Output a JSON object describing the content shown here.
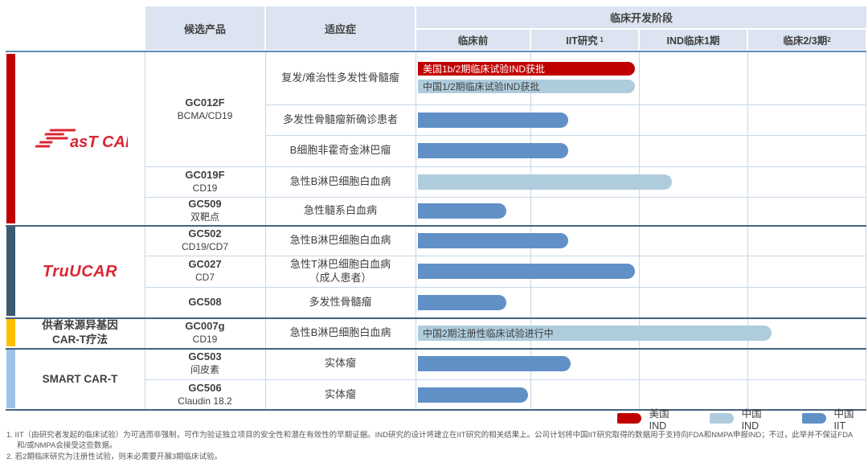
{
  "table": {
    "header": {
      "product": "候选产品",
      "indication": "适应症",
      "stage_group": "临床开发阶段",
      "stages": [
        {
          "label": "临床前",
          "sup": ""
        },
        {
          "label": "IIT研究",
          "sup": "1",
          "gap": true
        },
        {
          "label": "IND临床1期",
          "sup": ""
        },
        {
          "label": "临床2/3期",
          "sup": "2"
        }
      ]
    }
  },
  "colors": {
    "us_ind": "#C00000",
    "cn_ind": "#AFCCDC",
    "cn_iit": "#6190C7",
    "logo_red": "#D92632",
    "strip_fastcar": "#C00000",
    "strip_truucar": "#3D5A73",
    "strip_donor": "#FFC000",
    "strip_smart": "#9CC3E5"
  },
  "sections": [
    {
      "id": "fastcar",
      "label": "FasT CAR",
      "logo": "fastcar",
      "strip": "#C00000",
      "row_start": 0,
      "row_count": 5
    },
    {
      "id": "truucar",
      "label": "TruUCAR",
      "logo": "truucar",
      "strip": "#3D5A73",
      "row_start": 5,
      "row_count": 3
    },
    {
      "id": "donor-allogeneic",
      "label_lines": [
        "供者来源异基因",
        "CAR-T疗法"
      ],
      "strip": "#FFC000",
      "row_start": 8,
      "row_count": 1
    },
    {
      "id": "smart-cart",
      "label_lines": [
        "SMART CAR-T"
      ],
      "strip": "#9CC3E5",
      "row_start": 9,
      "row_count": 2
    }
  ],
  "chart_data": {
    "type": "gantt",
    "title": "临床开发阶段",
    "stages": [
      "临床前",
      "IIT研究",
      "IND临床1期",
      "临床2/3期"
    ],
    "legend_entries": [
      "美国 IND",
      "中国 IND",
      "中国 IIT"
    ],
    "rows": [
      {
        "product_lines": [
          "GC012F",
          "BCMA/CD19"
        ],
        "product_rowspan": 3,
        "indication_lines": [
          "复发/难治性多发性骨髓瘤"
        ],
        "bars": [
          {
            "type": "us_ind",
            "end_stage": 1.96,
            "label": "美国1b/2期临床试验IND获批"
          },
          {
            "type": "cn_ind",
            "end_stage": 1.96,
            "label": "中国1/2期临床试验IND获批"
          }
        ]
      },
      {
        "indication_lines": [
          "多发性骨髓瘤新确诊患者"
        ],
        "bars": [
          {
            "type": "cn_iit",
            "end_stage": 1.35,
            "label": ""
          }
        ]
      },
      {
        "indication_lines": [
          "B细胞非霍奇金淋巴瘤"
        ],
        "bars": [
          {
            "type": "cn_iit",
            "end_stage": 1.35,
            "label": ""
          }
        ]
      },
      {
        "product_lines": [
          "GC019F",
          "CD19"
        ],
        "product_rowspan": 1,
        "indication_lines": [
          "急性B淋巴细胞白血病"
        ],
        "bars": [
          {
            "type": "cn_ind",
            "end_stage": 2.3,
            "label": ""
          }
        ]
      },
      {
        "product_lines": [
          "GC509",
          "双靶点"
        ],
        "product_rowspan": 1,
        "indication_lines": [
          "急性髓系白血病"
        ],
        "bars": [
          {
            "type": "cn_iit",
            "end_stage": 0.79,
            "label": ""
          }
        ]
      },
      {
        "product_lines": [
          "GC502",
          "CD19/CD7"
        ],
        "product_rowspan": 1,
        "indication_lines": [
          "急性B淋巴细胞白血病"
        ],
        "bars": [
          {
            "type": "cn_iit",
            "end_stage": 1.35,
            "label": ""
          }
        ]
      },
      {
        "product_lines": [
          "GC027",
          "CD7"
        ],
        "product_rowspan": 1,
        "indication_lines": [
          "急性T淋巴细胞白血病",
          "（成人患者）"
        ],
        "bars": [
          {
            "type": "cn_iit",
            "end_stage": 1.96,
            "label": ""
          }
        ]
      },
      {
        "product_lines": [
          "GC508"
        ],
        "product_rowspan": 1,
        "indication_lines": [
          "多发性骨髓瘤"
        ],
        "bars": [
          {
            "type": "cn_iit",
            "end_stage": 0.79,
            "label": ""
          }
        ]
      },
      {
        "product_lines": [
          "GC007g",
          "CD19"
        ],
        "product_rowspan": 1,
        "indication_lines": [
          "急性B淋巴细胞白血病"
        ],
        "bars": [
          {
            "type": "cn_ind",
            "end_stage": 3.2,
            "label": "中国2期注册性临床试验进行中"
          }
        ]
      },
      {
        "product_lines": [
          "GC503",
          "间皮素"
        ],
        "product_rowspan": 1,
        "indication_lines": [
          "实体瘤"
        ],
        "bars": [
          {
            "type": "cn_iit",
            "end_stage": 1.37,
            "label": ""
          }
        ]
      },
      {
        "product_lines": [
          "GC506",
          "Claudin 18.2"
        ],
        "product_rowspan": 1,
        "indication_lines": [
          "实体瘤"
        ],
        "bars": [
          {
            "type": "cn_iit",
            "end_stage": 0.98,
            "label": ""
          }
        ]
      }
    ]
  },
  "legend": [
    {
      "type": "us_ind",
      "label": "美国 IND"
    },
    {
      "type": "cn_ind",
      "label": "中国 IND"
    },
    {
      "type": "cn_iit",
      "label": "中国 IIT"
    }
  ],
  "footnotes": [
    "1. IIT（由研究者发起的临床试验）为可选而非强制，可作为验证独立项目的安全性和潜在有效性的早期证据。IND研究的设计将建立在IIT研究的相关结果上。公司计划将中国IIT研究取得的数据用于支持向FDA和NMPA申报IND；不过，此举并不保证FDA和/或NMPA会接受这些数据。",
    "2. 若2期临床研究为注册性试验，则未必需要开展3期临床试验。"
  ]
}
